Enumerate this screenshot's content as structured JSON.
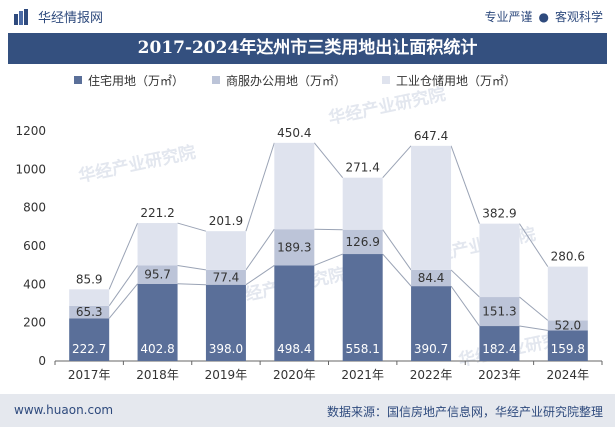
{
  "header": {
    "brand": "华经情报网",
    "tagline_left": "专业严谨",
    "tagline_right": "客观科学"
  },
  "footer": {
    "url": "www.huaon.com",
    "source": "数据来源：国信房地产信息网，华经产业研究院整理"
  },
  "watermark": "华经产业研究院",
  "colors": {
    "residential": "#5a6f99",
    "commercial": "#bcc4d8",
    "industrial": "#dfe3ee",
    "header_bg": "#34507f",
    "text_dark": "#2e4a7d"
  },
  "chart_data": {
    "type": "bar",
    "stacked": true,
    "title": "2017-2024年达州市三类用地出让面积统计",
    "categories": [
      "2017年",
      "2018年",
      "2019年",
      "2020年",
      "2021年",
      "2022年",
      "2023年",
      "2024年"
    ],
    "series": [
      {
        "name": "住宅用地（万㎡）",
        "values": [
          222.7,
          402.8,
          398.0,
          498.4,
          558.1,
          390.7,
          182.4,
          159.8
        ]
      },
      {
        "name": "商服办公用地（万㎡）",
        "values": [
          65.3,
          95.7,
          77.4,
          189.3,
          126.9,
          84.4,
          151.3,
          52.0
        ]
      },
      {
        "name": "工业仓储用地（万㎡）",
        "values": [
          85.9,
          221.2,
          201.9,
          450.4,
          271.4,
          647.4,
          382.9,
          280.6
        ]
      }
    ],
    "ylim": [
      0,
      1200
    ],
    "yticks": [
      0,
      200,
      400,
      600,
      800,
      1000,
      1200
    ],
    "legend_position": "top",
    "grid": false
  }
}
